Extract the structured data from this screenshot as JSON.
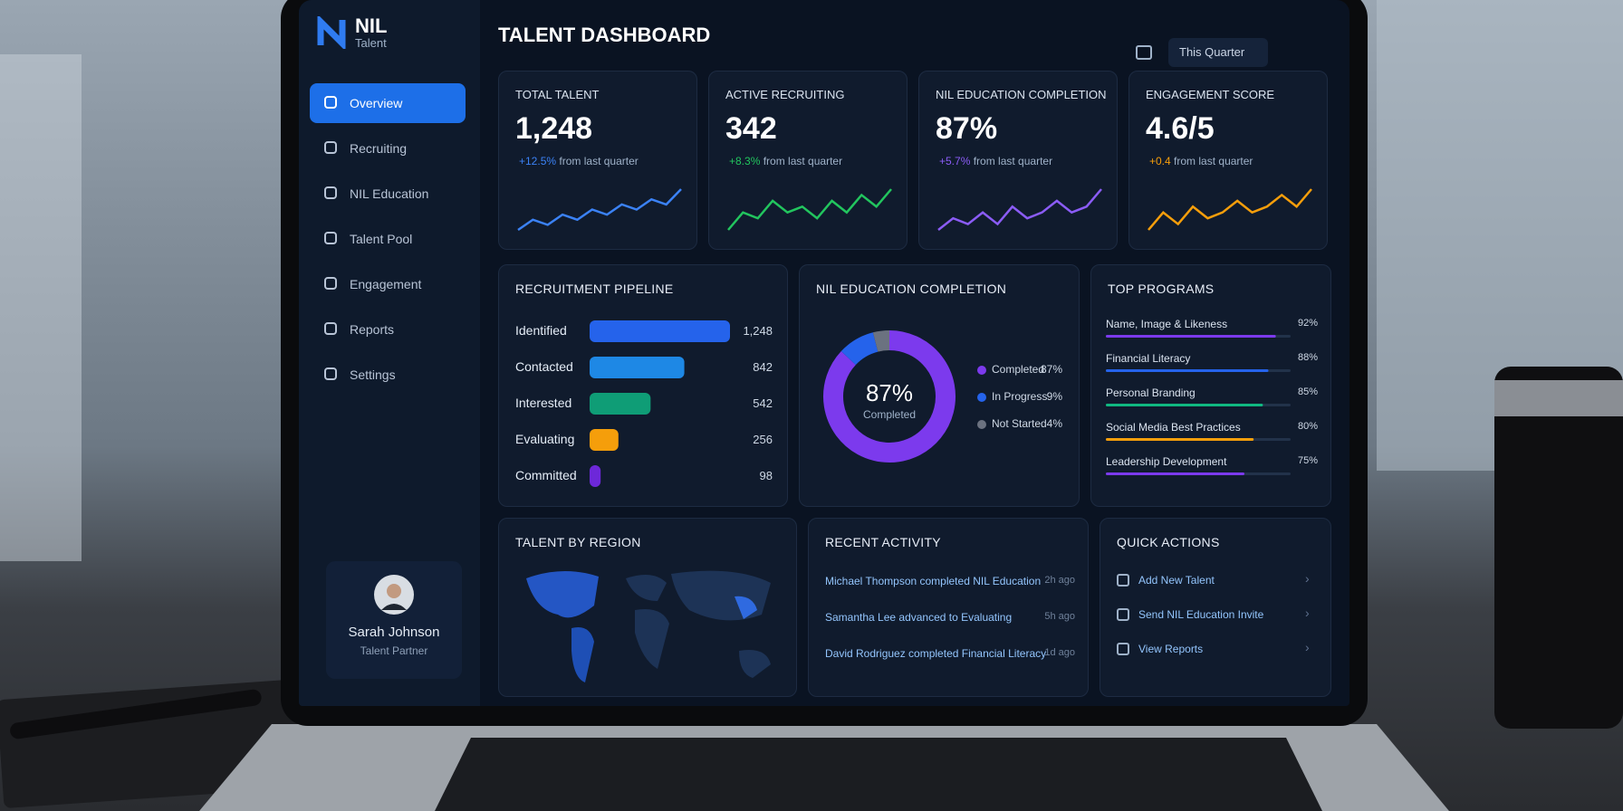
{
  "sidebar": {
    "brand": "NIL",
    "brand_sub": "Talent",
    "nav": [
      "Overview",
      "Recruiting",
      "NIL Education",
      "Talent Pool",
      "Engagement",
      "Reports",
      "Settings"
    ],
    "user": {
      "name": "Sarah Johnson",
      "role": "Talent Partner"
    }
  },
  "header": {
    "title": "TALENT DASHBOARD",
    "period": "This Quarter"
  },
  "kpis": [
    {
      "title": "TOTAL TALENT",
      "value": "1,248",
      "change": "+12.5%",
      "change_note": "from last quarter",
      "color": "#3b82f6",
      "trend": [
        3,
        5,
        4,
        6,
        5,
        7,
        6,
        8,
        7,
        9,
        8,
        11
      ]
    },
    {
      "title": "ACTIVE RECRUITING",
      "value": "342",
      "change": "+8.3%",
      "change_note": "from last quarter",
      "color": "#22c55e",
      "trend": [
        2,
        5,
        4,
        7,
        5,
        6,
        4,
        7,
        5,
        8,
        6,
        9
      ]
    },
    {
      "title": "NIL EDUCATION COMPLETION",
      "value": "87%",
      "change": "+5.7%",
      "change_note": "from last quarter",
      "color": "#8b5cf6",
      "trend": [
        3,
        5,
        4,
        6,
        4,
        7,
        5,
        6,
        8,
        6,
        7,
        10
      ]
    },
    {
      "title": "ENGAGEMENT SCORE",
      "value": "4.6/5",
      "change": "+0.4",
      "change_note": "from last quarter",
      "color": "#f59e0b",
      "trend": [
        2,
        5,
        3,
        6,
        4,
        5,
        7,
        5,
        6,
        8,
        6,
        9
      ]
    }
  ],
  "pipeline": {
    "title": "RECRUITMENT PIPELINE",
    "categories": [
      "Identified",
      "Contacted",
      "Interested",
      "Evaluating",
      "Committed"
    ],
    "values": [
      1248,
      842,
      542,
      256,
      98
    ],
    "value_labels": [
      "1,248",
      "842",
      "542",
      "256",
      "98"
    ],
    "colors": [
      "#2563eb",
      "#1e88e5",
      "#0f9d76",
      "#f59e0b",
      "#6d28d9"
    ]
  },
  "completion": {
    "title": "NIL EDUCATION COMPLETION",
    "categories": [
      "Completed",
      "In Progress",
      "Not Started"
    ],
    "values": [
      87,
      9,
      4
    ],
    "value_labels": [
      "87%",
      "9%",
      "4%"
    ],
    "colors": [
      "#7c3aed",
      "#2563eb",
      "#6b7280"
    ]
  },
  "programs": {
    "title": "TOP PROGRAMS",
    "categories": [
      "Name, Image & Likeness",
      "Financial Literacy",
      "Personal Branding",
      "Social Media Best Practices",
      "Leadership Development"
    ],
    "values": [
      92,
      88,
      85,
      80,
      75
    ],
    "value_labels": [
      "92%",
      "88%",
      "85%",
      "80%",
      "75%"
    ],
    "colors": [
      "#7c3aed",
      "#2563eb",
      "#10b981",
      "#f59e0b",
      "#7c3aed"
    ],
    "xlim": [
      0,
      100
    ]
  },
  "region": {
    "title": "TALENT BY REGION"
  },
  "activity": {
    "title": "RECENT ACTIVITY",
    "items": [
      {
        "text": "Michael Thompson completed NIL Education",
        "time": "2h ago"
      },
      {
        "text": "Samantha Lee advanced to Evaluating",
        "time": "5h ago"
      },
      {
        "text": "David Rodriguez completed Financial Literacy",
        "time": "1d ago"
      }
    ]
  },
  "quick_actions": {
    "title": "QUICK ACTIONS",
    "items": [
      "Add New Talent",
      "Send NIL Education Invite",
      "View Reports"
    ]
  }
}
